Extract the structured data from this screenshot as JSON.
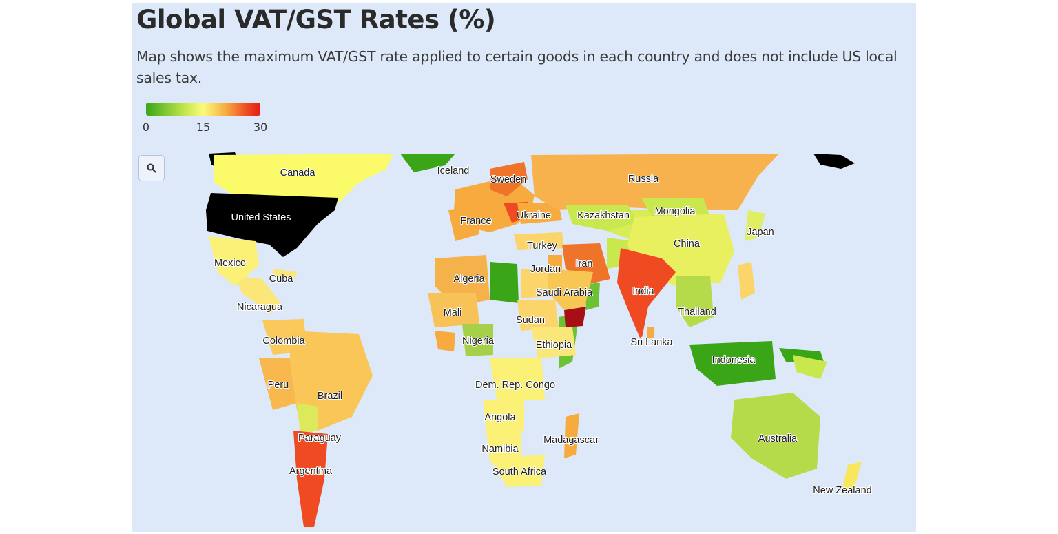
{
  "header": {
    "title": "Global VAT/GST Rates (%)",
    "subtitle": "Map shows the maximum VAT/GST rate applied to certain goods in each country and does not include US local sales tax."
  },
  "legend": {
    "min": "0",
    "mid": "15",
    "max": "30",
    "colors": [
      "#3aa617",
      "#c8e84e",
      "#fbfb7c",
      "#f7ab3f",
      "#f04a23",
      "#e01e14"
    ]
  },
  "controls": {
    "zoom_icon": "search-icon"
  },
  "map": {
    "ocean_color": "#dde8f8",
    "no_data_color": "#000000",
    "countries": [
      {
        "name": "Canada",
        "color": "#fbfb6a"
      },
      {
        "name": "United States",
        "color": "#000000"
      },
      {
        "name": "Mexico",
        "color": "#fbf176"
      },
      {
        "name": "Cuba",
        "color": "#fbe67a"
      },
      {
        "name": "Nicaragua",
        "color": "#fbd46a"
      },
      {
        "name": "Colombia",
        "color": "#fbc85c"
      },
      {
        "name": "Peru",
        "color": "#f8b84e"
      },
      {
        "name": "Brazil",
        "color": "#f9c657"
      },
      {
        "name": "Paraguay",
        "color": "#dbe95a"
      },
      {
        "name": "Argentina",
        "color": "#f04a23"
      },
      {
        "name": "Iceland",
        "color": "#3aa617"
      },
      {
        "name": "Sweden",
        "color": "#f0732a"
      },
      {
        "name": "France",
        "color": "#f7ab3f"
      },
      {
        "name": "Ukraine",
        "color": "#f7ab3f"
      },
      {
        "name": "Russia",
        "color": "#f7b24d"
      },
      {
        "name": "Kazakhstan",
        "color": "#c8e84e"
      },
      {
        "name": "Mongolia",
        "color": "#c8e84e"
      },
      {
        "name": "China",
        "color": "#e9f060"
      },
      {
        "name": "Japan",
        "color": "#e0ee64"
      },
      {
        "name": "Turkey",
        "color": "#fbd46a"
      },
      {
        "name": "Iran",
        "color": "#f0732a"
      },
      {
        "name": "Jordan",
        "color": "#f7ab3f"
      },
      {
        "name": "Saudi Arabia",
        "color": "#f8c653"
      },
      {
        "name": "India",
        "color": "#f04a23"
      },
      {
        "name": "Sri Lanka",
        "color": "#f7ab3f"
      },
      {
        "name": "Thailand",
        "color": "#b5db4a"
      },
      {
        "name": "Indonesia",
        "color": "#3aa617"
      },
      {
        "name": "Algeria",
        "color": "#f5b14a"
      },
      {
        "name": "Mali",
        "color": "#f7c257"
      },
      {
        "name": "Sudan",
        "color": "#fbd46a"
      },
      {
        "name": "Nigeria",
        "color": "#a6d04a"
      },
      {
        "name": "Ethiopia",
        "color": "#fbe67a"
      },
      {
        "name": "Dem. Rep. Congo",
        "color": "#fbf176"
      },
      {
        "name": "Angola",
        "color": "#fbf176"
      },
      {
        "name": "Namibia",
        "color": "#fbf176"
      },
      {
        "name": "South Africa",
        "color": "#fbf176"
      },
      {
        "name": "Madagascar",
        "color": "#f7ab3f"
      },
      {
        "name": "Australia",
        "color": "#b5db4a"
      },
      {
        "name": "New Zealand",
        "color": "#f8e65c"
      }
    ]
  }
}
